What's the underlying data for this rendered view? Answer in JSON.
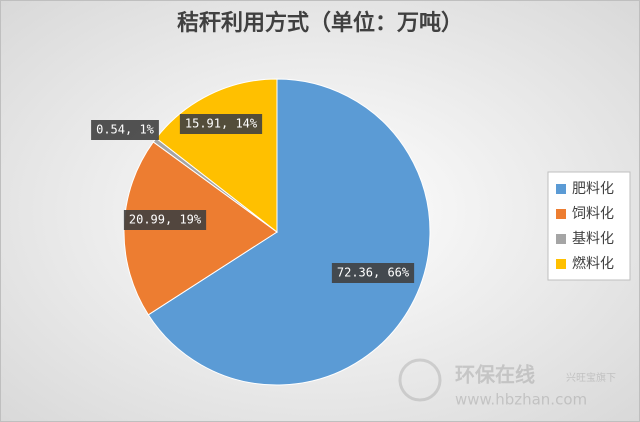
{
  "chart_data": {
    "type": "pie",
    "title": "秸秆利用方式（单位：万吨）",
    "categories": [
      "肥料化",
      "饲料化",
      "基料化",
      "燃料化"
    ],
    "values": [
      72.36,
      20.99,
      0.54,
      15.91
    ],
    "value_labels": [
      "72.36, 66%",
      "20.99, 19%",
      "0.54, 1%",
      "15.91, 14%"
    ],
    "colors": [
      "#5b9bd5",
      "#ed7d31",
      "#a5a5a5",
      "#ffc000"
    ],
    "legend": "right"
  },
  "watermark": {
    "brand": "环保在线",
    "tagline": "兴旺宝旗下",
    "url": "www.hbzhan.com"
  }
}
